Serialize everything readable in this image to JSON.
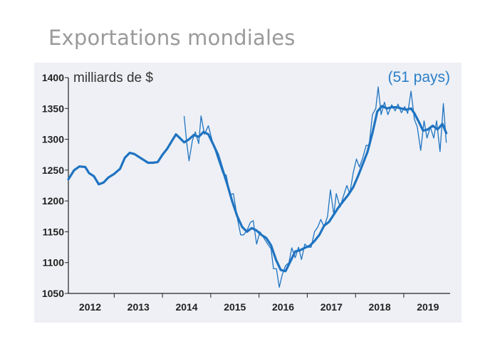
{
  "title": "Exportations mondiales",
  "chart_data": {
    "type": "line",
    "unit_label": "milliards de $",
    "annotation": "(51 pays)",
    "ylim": [
      1050,
      1400
    ],
    "yticks": [
      1050,
      1100,
      1150,
      1200,
      1250,
      1300,
      1350,
      1400
    ],
    "xlim": [
      2011.55,
      2019.46
    ],
    "xticks": [
      {
        "label": "2012",
        "x": 2012
      },
      {
        "label": "2013",
        "x": 2013
      },
      {
        "label": "2014",
        "x": 2014
      },
      {
        "label": "2015",
        "x": 2015
      },
      {
        "label": "2016",
        "x": 2016
      },
      {
        "label": "2017",
        "x": 2017
      },
      {
        "label": "2018",
        "x": 2018
      },
      {
        "label": "2019",
        "x": 2019
      }
    ],
    "grid": false,
    "colors": {
      "series": "#1f73c1",
      "annotation": "#2a7fc9",
      "background": "#eef0f5",
      "axis": "#222222"
    },
    "series": [
      {
        "style": "thick",
        "points": [
          [
            2011.55,
            1235
          ],
          [
            2011.67,
            1250
          ],
          [
            2011.78,
            1256
          ],
          [
            2011.9,
            1255
          ],
          [
            2011.98,
            1245
          ],
          [
            2012.08,
            1240
          ],
          [
            2012.18,
            1227
          ],
          [
            2012.28,
            1230
          ],
          [
            2012.38,
            1238
          ],
          [
            2012.5,
            1244
          ],
          [
            2012.62,
            1252
          ],
          [
            2012.72,
            1270
          ],
          [
            2012.82,
            1278
          ],
          [
            2012.92,
            1276
          ],
          [
            2013.02,
            1271
          ],
          [
            2013.12,
            1266
          ],
          [
            2013.2,
            1262
          ],
          [
            2013.3,
            1262
          ],
          [
            2013.4,
            1263
          ],
          [
            2013.5,
            1275
          ],
          [
            2013.6,
            1285
          ],
          [
            2013.7,
            1298
          ],
          [
            2013.78,
            1308
          ],
          [
            2013.86,
            1302
          ],
          [
            2013.95,
            1295
          ],
          [
            2014.05,
            1300
          ],
          [
            2014.15,
            1307
          ],
          [
            2014.25,
            1304
          ],
          [
            2014.35,
            1312
          ],
          [
            2014.45,
            1308
          ],
          [
            2014.55,
            1292
          ],
          [
            2014.65,
            1275
          ],
          [
            2014.75,
            1250
          ],
          [
            2014.85,
            1225
          ],
          [
            2014.95,
            1198
          ],
          [
            2015.05,
            1175
          ],
          [
            2015.15,
            1158
          ],
          [
            2015.25,
            1150
          ],
          [
            2015.35,
            1156
          ],
          [
            2015.45,
            1152
          ],
          [
            2015.55,
            1145
          ],
          [
            2015.65,
            1140
          ],
          [
            2015.75,
            1128
          ],
          [
            2015.85,
            1105
          ],
          [
            2015.95,
            1088
          ],
          [
            2016.05,
            1086
          ],
          [
            2016.15,
            1102
          ],
          [
            2016.25,
            1118
          ],
          [
            2016.35,
            1120
          ],
          [
            2016.45,
            1124
          ],
          [
            2016.55,
            1127
          ],
          [
            2016.65,
            1135
          ],
          [
            2016.75,
            1145
          ],
          [
            2016.85,
            1160
          ],
          [
            2016.95,
            1166
          ],
          [
            2017.05,
            1178
          ],
          [
            2017.15,
            1190
          ],
          [
            2017.25,
            1200
          ],
          [
            2017.35,
            1210
          ],
          [
            2017.45,
            1222
          ],
          [
            2017.55,
            1240
          ],
          [
            2017.65,
            1260
          ],
          [
            2017.75,
            1280
          ],
          [
            2017.85,
            1310
          ],
          [
            2017.95,
            1345
          ],
          [
            2018.05,
            1354
          ],
          [
            2018.15,
            1350
          ],
          [
            2018.25,
            1352
          ],
          [
            2018.35,
            1352
          ],
          [
            2018.45,
            1350
          ],
          [
            2018.55,
            1348
          ],
          [
            2018.65,
            1350
          ],
          [
            2018.72,
            1342
          ],
          [
            2018.8,
            1330
          ],
          [
            2018.9,
            1314
          ],
          [
            2019.0,
            1316
          ],
          [
            2019.1,
            1322
          ],
          [
            2019.2,
            1316
          ],
          [
            2019.3,
            1325
          ],
          [
            2019.38,
            1310
          ]
        ]
      },
      {
        "style": "thin",
        "points": [
          [
            2013.95,
            1337
          ],
          [
            2014.0,
            1296
          ],
          [
            2014.05,
            1265
          ],
          [
            2014.12,
            1298
          ],
          [
            2014.18,
            1312
          ],
          [
            2014.25,
            1293
          ],
          [
            2014.3,
            1338
          ],
          [
            2014.37,
            1308
          ],
          [
            2014.45,
            1322
          ],
          [
            2014.55,
            1292
          ],
          [
            2014.65,
            1268
          ],
          [
            2014.75,
            1245
          ],
          [
            2014.82,
            1242
          ],
          [
            2014.9,
            1210
          ],
          [
            2014.97,
            1212
          ],
          [
            2015.05,
            1172
          ],
          [
            2015.12,
            1145
          ],
          [
            2015.18,
            1145
          ],
          [
            2015.25,
            1152
          ],
          [
            2015.32,
            1165
          ],
          [
            2015.38,
            1168
          ],
          [
            2015.45,
            1130
          ],
          [
            2015.52,
            1150
          ],
          [
            2015.6,
            1140
          ],
          [
            2015.68,
            1130
          ],
          [
            2015.75,
            1122
          ],
          [
            2015.8,
            1090
          ],
          [
            2015.86,
            1090
          ],
          [
            2015.92,
            1060
          ],
          [
            2015.98,
            1080
          ],
          [
            2016.05,
            1095
          ],
          [
            2016.12,
            1100
          ],
          [
            2016.18,
            1124
          ],
          [
            2016.25,
            1108
          ],
          [
            2016.32,
            1125
          ],
          [
            2016.38,
            1105
          ],
          [
            2016.45,
            1130
          ],
          [
            2016.52,
            1125
          ],
          [
            2016.58,
            1125
          ],
          [
            2016.65,
            1150
          ],
          [
            2016.72,
            1158
          ],
          [
            2016.78,
            1170
          ],
          [
            2016.85,
            1158
          ],
          [
            2016.92,
            1175
          ],
          [
            2016.98,
            1218
          ],
          [
            2017.05,
            1178
          ],
          [
            2017.1,
            1212
          ],
          [
            2017.18,
            1190
          ],
          [
            2017.25,
            1208
          ],
          [
            2017.32,
            1225
          ],
          [
            2017.38,
            1212
          ],
          [
            2017.45,
            1245
          ],
          [
            2017.52,
            1268
          ],
          [
            2017.58,
            1255
          ],
          [
            2017.65,
            1270
          ],
          [
            2017.72,
            1290
          ],
          [
            2017.78,
            1290
          ],
          [
            2017.85,
            1340
          ],
          [
            2017.92,
            1350
          ],
          [
            2017.97,
            1385
          ],
          [
            2018.03,
            1340
          ],
          [
            2018.1,
            1360
          ],
          [
            2018.17,
            1340
          ],
          [
            2018.25,
            1356
          ],
          [
            2018.32,
            1346
          ],
          [
            2018.38,
            1357
          ],
          [
            2018.45,
            1343
          ],
          [
            2018.52,
            1353
          ],
          [
            2018.58,
            1342
          ],
          [
            2018.65,
            1378
          ],
          [
            2018.72,
            1332
          ],
          [
            2018.78,
            1320
          ],
          [
            2018.85,
            1282
          ],
          [
            2018.92,
            1330
          ],
          [
            2018.98,
            1302
          ],
          [
            2019.05,
            1320
          ],
          [
            2019.12,
            1302
          ],
          [
            2019.18,
            1330
          ],
          [
            2019.25,
            1280
          ],
          [
            2019.32,
            1358
          ],
          [
            2019.38,
            1295
          ]
        ]
      }
    ]
  }
}
